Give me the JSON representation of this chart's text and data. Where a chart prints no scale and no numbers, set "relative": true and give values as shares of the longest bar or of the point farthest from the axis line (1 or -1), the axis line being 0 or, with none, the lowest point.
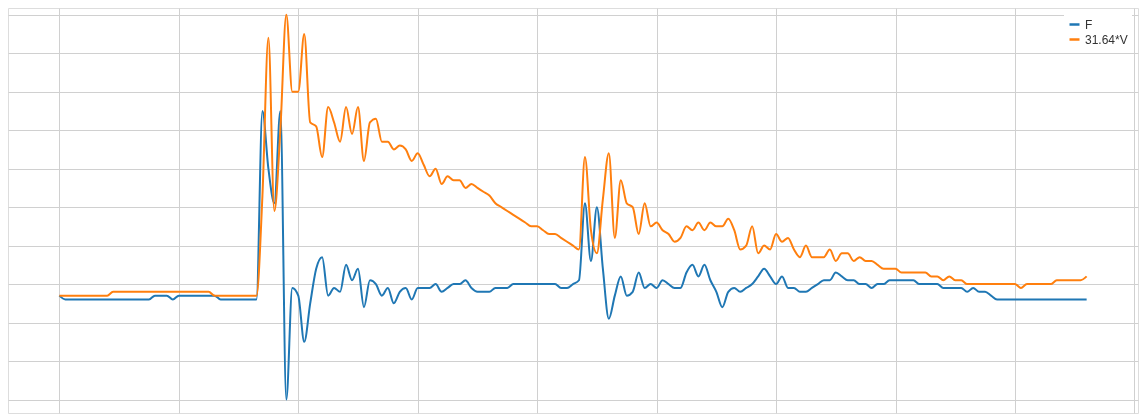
{
  "chart_data": {
    "type": "line",
    "relative": true,
    "grid": true,
    "legend": "top right",
    "categories": [
      null,
      null,
      null,
      null,
      null,
      null,
      null,
      null,
      null,
      null,
      null,
      null,
      null,
      null,
      null,
      null,
      null,
      null,
      null,
      null,
      null,
      null,
      null,
      null,
      null,
      null,
      null,
      null,
      null,
      null,
      null,
      null,
      null,
      null,
      null,
      null,
      null,
      null,
      null,
      null,
      null,
      null,
      null,
      null,
      null,
      null,
      null,
      null,
      null,
      null,
      null,
      null,
      null,
      null,
      null,
      null,
      null,
      null,
      null,
      null,
      null,
      null,
      null,
      null,
      null,
      null,
      null,
      null,
      null,
      null,
      null,
      null,
      null,
      null,
      null,
      null,
      null,
      null,
      null,
      null,
      null,
      null,
      null,
      null,
      null,
      null,
      null,
      null,
      null,
      null,
      null,
      null,
      null,
      null,
      null,
      null,
      null,
      null,
      null,
      null,
      null,
      null,
      null,
      null,
      null,
      null,
      null,
      null,
      null,
      null,
      null,
      null,
      null,
      null,
      null,
      null,
      null,
      null,
      null,
      null,
      null,
      null,
      null,
      null,
      null,
      null,
      null,
      null,
      null,
      null,
      null,
      null,
      null,
      null,
      null,
      null,
      null,
      null,
      null,
      null,
      null,
      null,
      null,
      null,
      null,
      null,
      null,
      null,
      null,
      null,
      null,
      null,
      null,
      null,
      null,
      null,
      null,
      null,
      null,
      null,
      null,
      null,
      null,
      null,
      null,
      null,
      null,
      null,
      null,
      null,
      null,
      null,
      null
    ],
    "series": [
      {
        "name": "F",
        "color": "#1f77b4",
        "values": [
          0.27,
          0.26,
          0.26,
          0.26,
          0.26,
          0.26,
          0.26,
          0.26,
          0.26,
          0.26,
          0.26,
          0.26,
          0.26,
          0.26,
          0.26,
          0.26,
          0.27,
          0.27,
          0.27,
          0.26,
          0.27,
          0.27,
          0.27,
          0.27,
          0.27,
          0.27,
          0.27,
          0.26,
          0.26,
          0.26,
          0.26,
          0.26,
          0.26,
          0.26,
          0.75,
          0.6,
          0.51,
          0.75,
          0.0,
          0.29,
          0.27,
          0.15,
          0.25,
          0.34,
          0.37,
          0.27,
          0.29,
          0.28,
          0.35,
          0.31,
          0.34,
          0.24,
          0.31,
          0.3,
          0.27,
          0.29,
          0.25,
          0.28,
          0.29,
          0.26,
          0.29,
          0.29,
          0.29,
          0.3,
          0.28,
          0.29,
          0.3,
          0.3,
          0.31,
          0.29,
          0.28,
          0.28,
          0.28,
          0.29,
          0.29,
          0.29,
          0.3,
          0.3,
          0.3,
          0.3,
          0.3,
          0.3,
          0.3,
          0.3,
          0.29,
          0.29,
          0.3,
          0.31,
          0.51,
          0.36,
          0.5,
          0.34,
          0.21,
          0.27,
          0.32,
          0.27,
          0.28,
          0.33,
          0.29,
          0.3,
          0.29,
          0.31,
          0.3,
          0.29,
          0.29,
          0.33,
          0.35,
          0.32,
          0.35,
          0.31,
          0.28,
          0.24,
          0.28,
          0.29,
          0.28,
          0.29,
          0.3,
          0.32,
          0.34,
          0.32,
          0.3,
          0.32,
          0.29,
          0.29,
          0.28,
          0.28,
          0.29,
          0.3,
          0.31,
          0.31,
          0.33,
          0.32,
          0.31,
          0.31,
          0.3,
          0.3,
          0.29,
          0.3,
          0.3,
          0.31,
          0.31,
          0.31,
          0.31,
          0.31,
          0.3,
          0.3,
          0.3,
          0.3,
          0.29,
          0.29,
          0.29,
          0.29,
          0.28,
          0.29,
          0.28,
          0.28,
          0.27,
          0.26,
          0.26,
          0.26,
          0.26,
          0.26,
          0.26,
          0.26,
          0.26,
          0.26,
          0.26,
          0.26,
          0.26,
          0.26,
          0.26,
          0.26,
          0.26
        ]
      },
      {
        "name": "31.64*V",
        "color": "#ff7f0e",
        "values": [
          0.27,
          0.27,
          0.27,
          0.27,
          0.27,
          0.27,
          0.27,
          0.27,
          0.27,
          0.28,
          0.28,
          0.28,
          0.28,
          0.28,
          0.28,
          0.28,
          0.28,
          0.28,
          0.28,
          0.28,
          0.28,
          0.28,
          0.28,
          0.28,
          0.28,
          0.28,
          0.27,
          0.27,
          0.27,
          0.27,
          0.27,
          0.27,
          0.27,
          0.27,
          0.53,
          0.94,
          0.49,
          0.7,
          1.0,
          0.8,
          0.8,
          0.95,
          0.72,
          0.71,
          0.63,
          0.76,
          0.72,
          0.67,
          0.76,
          0.69,
          0.76,
          0.62,
          0.72,
          0.73,
          0.67,
          0.67,
          0.65,
          0.66,
          0.65,
          0.62,
          0.64,
          0.61,
          0.58,
          0.6,
          0.56,
          0.58,
          0.57,
          0.57,
          0.55,
          0.56,
          0.55,
          0.54,
          0.53,
          0.51,
          0.5,
          0.49,
          0.48,
          0.47,
          0.46,
          0.45,
          0.45,
          0.44,
          0.43,
          0.43,
          0.42,
          0.41,
          0.4,
          0.39,
          0.63,
          0.44,
          0.38,
          0.52,
          0.64,
          0.42,
          0.57,
          0.51,
          0.5,
          0.43,
          0.51,
          0.45,
          0.46,
          0.44,
          0.43,
          0.41,
          0.42,
          0.45,
          0.44,
          0.46,
          0.44,
          0.46,
          0.45,
          0.45,
          0.47,
          0.44,
          0.39,
          0.4,
          0.45,
          0.38,
          0.4,
          0.39,
          0.43,
          0.41,
          0.42,
          0.39,
          0.37,
          0.4,
          0.37,
          0.37,
          0.37,
          0.39,
          0.36,
          0.38,
          0.38,
          0.36,
          0.37,
          0.36,
          0.36,
          0.35,
          0.34,
          0.34,
          0.34,
          0.33,
          0.33,
          0.33,
          0.33,
          0.33,
          0.32,
          0.32,
          0.31,
          0.32,
          0.31,
          0.31,
          0.3,
          0.3,
          0.3,
          0.3,
          0.3,
          0.3,
          0.3,
          0.3,
          0.3,
          0.29,
          0.3,
          0.3,
          0.3,
          0.3,
          0.3,
          0.31,
          0.31,
          0.31,
          0.31,
          0.31,
          0.32
        ]
      }
    ]
  }
}
